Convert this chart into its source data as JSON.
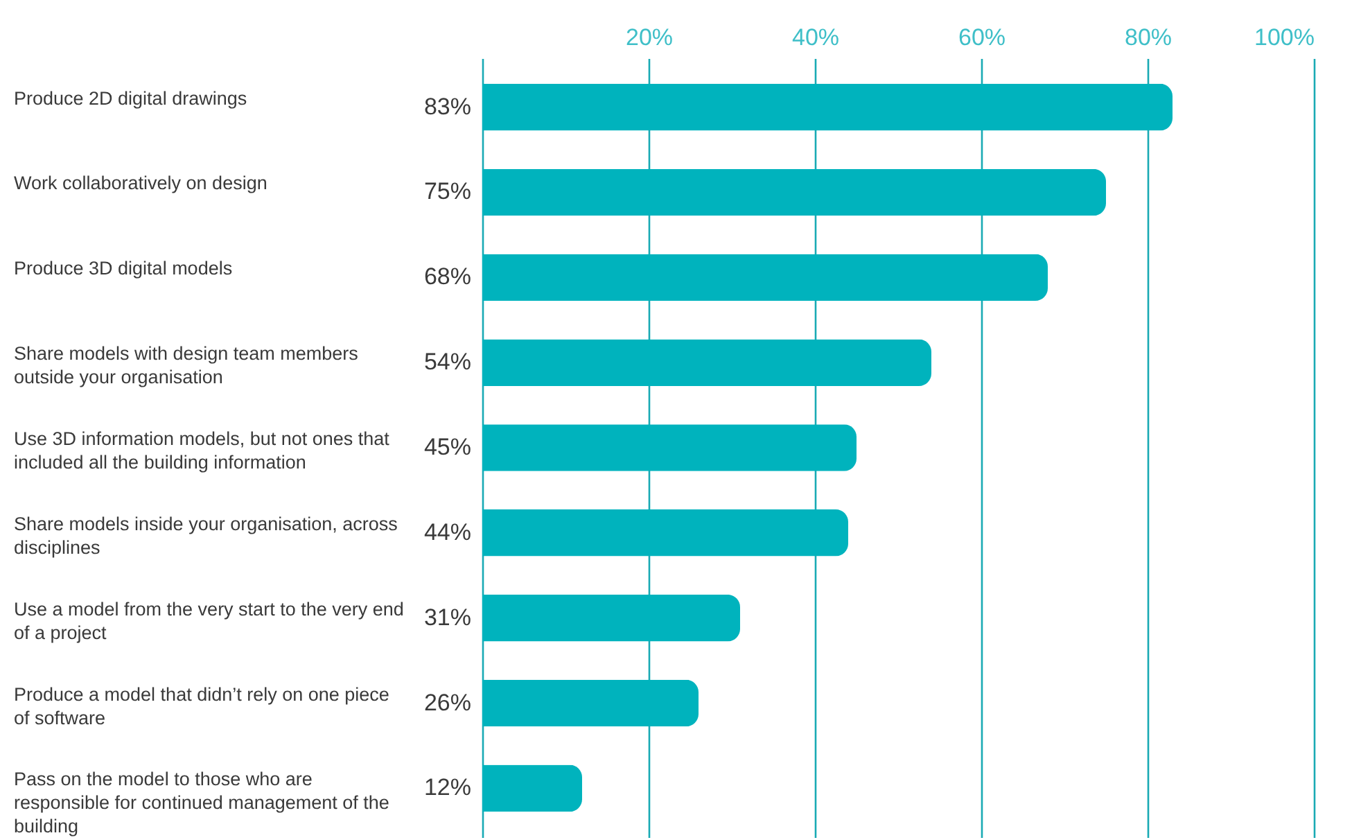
{
  "chart_data": {
    "type": "bar",
    "orientation": "horizontal",
    "categories": [
      "Produce 2D digital drawings",
      "Work collaboratively on design",
      "Produce 3D digital models",
      "Share models with design team members outside your organisation",
      "Use 3D information models, but not ones that included all the building information",
      "Share models inside your organisation, across disciplines",
      "Use a model from the very start to the very end of a project",
      "Produce a model that didn’t rely on one piece of software",
      "Pass on the model to those who are responsible for continued management of the building"
    ],
    "values": [
      83,
      75,
      68,
      54,
      45,
      44,
      31,
      26,
      12
    ],
    "value_labels": [
      "83%",
      "75%",
      "68%",
      "54%",
      "45%",
      "44%",
      "31%",
      "26%",
      "12%"
    ],
    "color": "#00b3bd",
    "xlim": [
      0,
      100
    ],
    "xticks": [
      {
        "value": 0,
        "label": null
      },
      {
        "value": 20,
        "label": "20%"
      },
      {
        "value": 40,
        "label": "40%"
      },
      {
        "value": 60,
        "label": "60%"
      },
      {
        "value": 80,
        "label": "80%"
      },
      {
        "value": 100,
        "label": "100%"
      }
    ],
    "grid": "x"
  }
}
